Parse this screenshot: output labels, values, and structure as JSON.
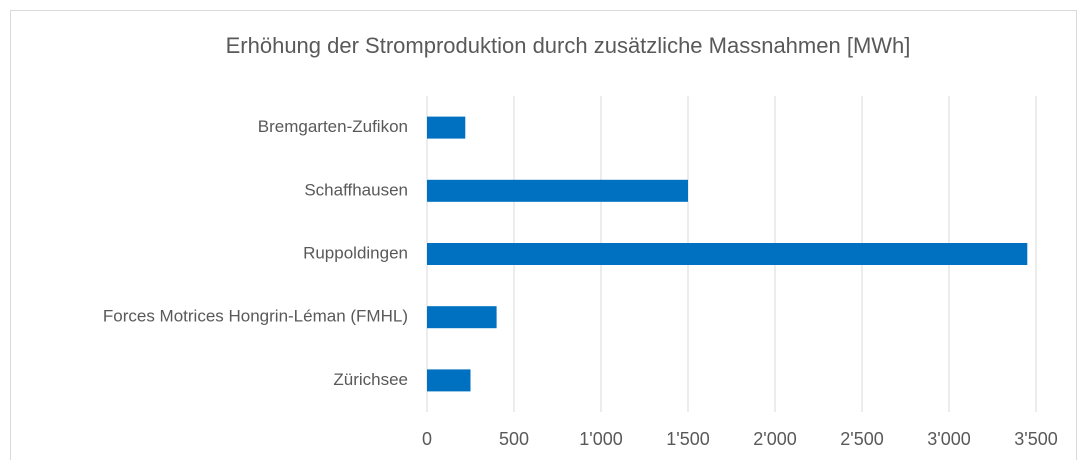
{
  "chart_data": {
    "type": "hbar",
    "title": "Erhöhung der Stromproduktion durch zusätzliche Massnahmen  [MWh]",
    "categories": [
      "Bremgarten-Zufikon",
      "Schaffhausen",
      "Ruppoldingen",
      "Forces Motrices Hongrin-Léman (FMHL)",
      "Zürichsee"
    ],
    "values": [
      220,
      1500,
      3450,
      400,
      250
    ],
    "color": "#0070c0",
    "xlim": [
      0,
      3500
    ],
    "xticks": [
      0,
      500,
      {
        "value": 1000,
        "label": "1'000"
      },
      {
        "value": 1500,
        "label": "1'500"
      },
      {
        "value": 2000,
        "label": "2'000"
      },
      {
        "value": 2500,
        "label": "2'500"
      },
      {
        "value": 3000,
        "label": "3'000"
      },
      {
        "value": 3500,
        "label": "3'500"
      }
    ],
    "grid": true
  }
}
